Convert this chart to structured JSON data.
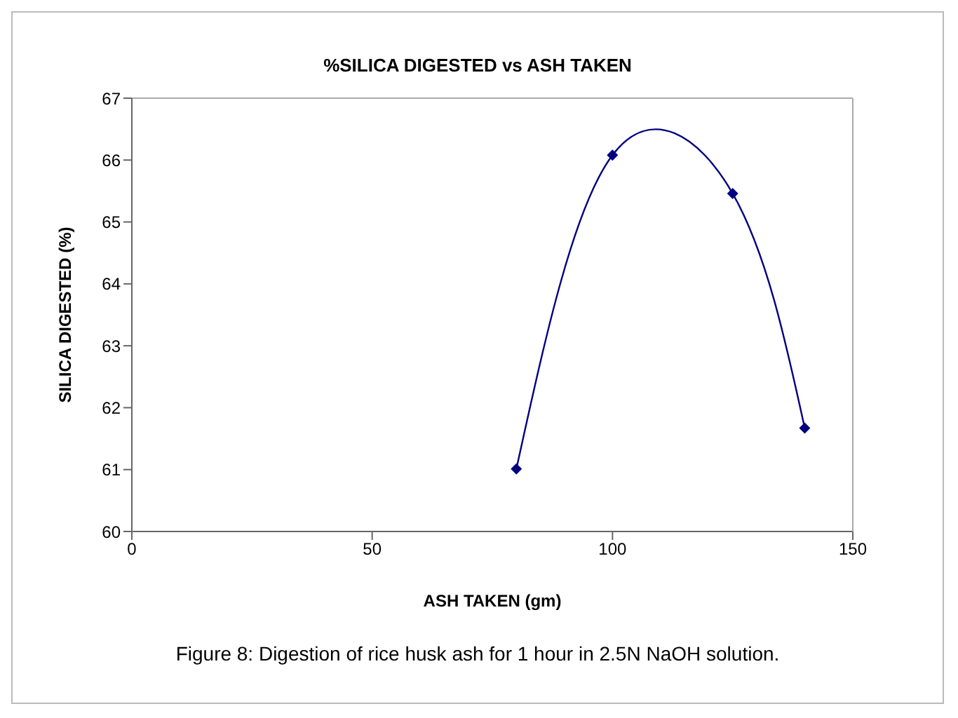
{
  "chart_data": {
    "type": "line",
    "title": "%SILICA DIGESTED vs ASH TAKEN",
    "xlabel": "ASH TAKEN (gm)",
    "ylabel": "SILICA DIGESTED (%)",
    "x": [
      80,
      100,
      125,
      140
    ],
    "series": [
      {
        "color": "#000080",
        "values": [
          61.01,
          66.08,
          65.46,
          61.67
        ]
      }
    ],
    "xlim": [
      0,
      150
    ],
    "xticks": [
      0,
      50,
      100,
      150
    ],
    "ylim": [
      60,
      67
    ],
    "yticks": [
      60,
      61,
      62,
      63,
      64,
      65,
      66,
      67
    ],
    "marker": "diamond",
    "line_style": "solid",
    "grid": false,
    "legend": false,
    "annotations": [
      "Figure 8: Digestion of rice husk ash for 1 hour in 2.5N NaOH solution."
    ]
  }
}
